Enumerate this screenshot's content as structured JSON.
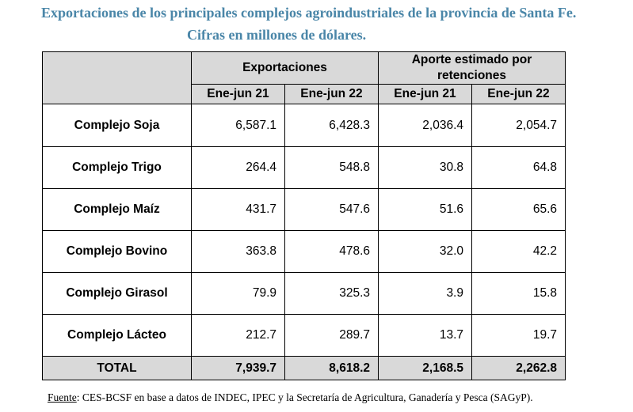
{
  "title_line1": "Exportaciones de los principales complejos agroindustriales de la provincia de Santa Fe.",
  "title_line2": "Cifras en millones de dólares.",
  "header": {
    "group1": "Exportaciones",
    "group2": "Aporte estimado por retenciones",
    "periods": [
      "Ene-jun 21",
      "Ene-jun 22",
      "Ene-jun 21",
      "Ene-jun 22"
    ]
  },
  "rows": [
    {
      "label": "Complejo Soja",
      "values": [
        "6,587.1",
        "6,428.3",
        "2,036.4",
        "2,054.7"
      ]
    },
    {
      "label": "Complejo Trigo",
      "values": [
        "264.4",
        "548.8",
        "30.8",
        "64.8"
      ]
    },
    {
      "label": "Complejo Maíz",
      "values": [
        "431.7",
        "547.6",
        "51.6",
        "65.6"
      ]
    },
    {
      "label": "Complejo Bovino",
      "values": [
        "363.8",
        "478.6",
        "32.0",
        "42.2"
      ]
    },
    {
      "label": "Complejo Girasol",
      "values": [
        "79.9",
        "325.3",
        "3.9",
        "15.8"
      ]
    },
    {
      "label": "Complejo Lácteo",
      "values": [
        "212.7",
        "289.7",
        "13.7",
        "19.7"
      ]
    }
  ],
  "total": {
    "label": "TOTAL",
    "values": [
      "7,939.7",
      "8,618.2",
      "2,168.5",
      "2,262.8"
    ]
  },
  "source": {
    "label": "Fuente",
    "text": ": CES-BCSF en base a datos de INDEC, IPEC y la Secretaría de Agricultura, Ganadería y Pesca (SAGyP)."
  }
}
